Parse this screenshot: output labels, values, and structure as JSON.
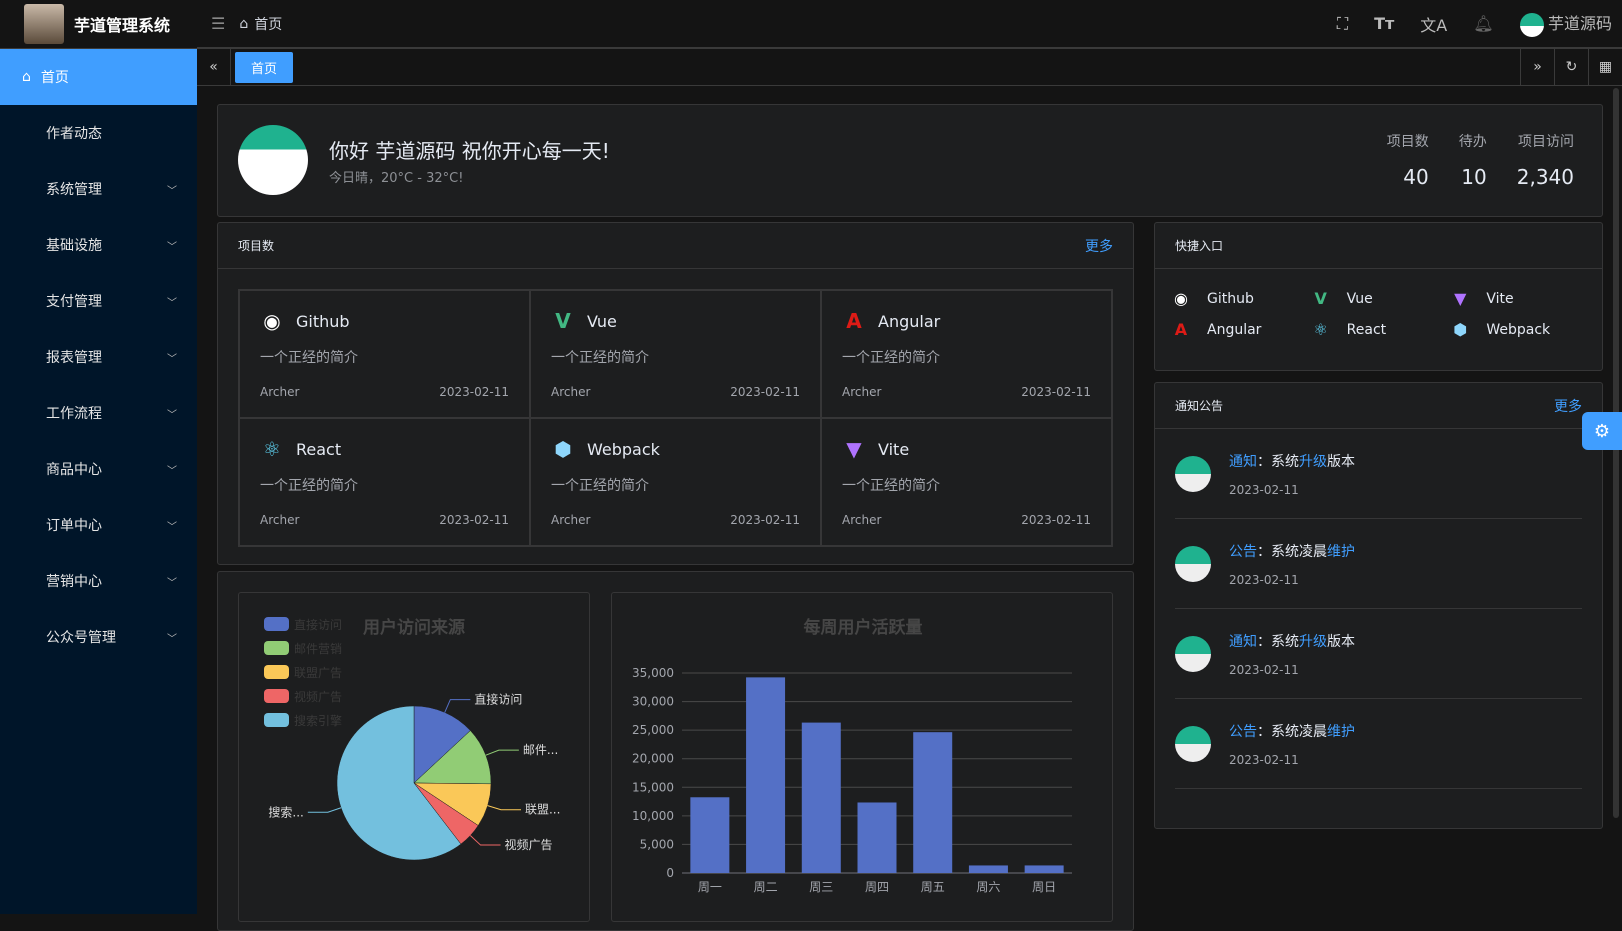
{
  "header": {
    "title": "芋道管理系统",
    "breadcrumb": "首页",
    "user": "芋道源码",
    "icons": [
      "fullscreen-icon",
      "font-size-icon",
      "translate-icon",
      "bell-icon"
    ]
  },
  "sidebar": {
    "items": [
      {
        "label": "首页",
        "active": true
      },
      {
        "label": "作者动态"
      },
      {
        "label": "系统管理",
        "sub": true
      },
      {
        "label": "基础设施",
        "sub": true
      },
      {
        "label": "支付管理",
        "sub": true
      },
      {
        "label": "报表管理",
        "sub": true
      },
      {
        "label": "工作流程",
        "sub": true
      },
      {
        "label": "商品中心",
        "sub": true
      },
      {
        "label": "订单中心",
        "sub": true
      },
      {
        "label": "营销中心",
        "sub": true
      },
      {
        "label": "公众号管理",
        "sub": true
      }
    ]
  },
  "tabs": [
    {
      "label": "首页"
    }
  ],
  "welcome": {
    "greeting": "你好 芋道源码 祝你开心每一天!",
    "weather": "今日晴，20°C - 32°C!",
    "stats": [
      {
        "label": "项目数",
        "value": "40"
      },
      {
        "label": "待办",
        "value": "10"
      },
      {
        "label": "项目访问",
        "value": "2,340"
      }
    ]
  },
  "projects": {
    "title": "项目数",
    "more": "更多",
    "items": [
      {
        "name": "Github",
        "icon": "github-icon",
        "color": "#ffffff",
        "desc": "一个正经的简介",
        "author": "Archer",
        "date": "2023-02-11"
      },
      {
        "name": "Vue",
        "icon": "vue-icon",
        "color": "#42b883",
        "desc": "一个正经的简介",
        "author": "Archer",
        "date": "2023-02-11"
      },
      {
        "name": "Angular",
        "icon": "angular-icon",
        "color": "#dd1b16",
        "desc": "一个正经的简介",
        "author": "Archer",
        "date": "2023-02-11"
      },
      {
        "name": "React",
        "icon": "react-icon",
        "color": "#61dafb",
        "desc": "一个正经的简介",
        "author": "Archer",
        "date": "2023-02-11"
      },
      {
        "name": "Webpack",
        "icon": "webpack-icon",
        "color": "#8ed6fb",
        "desc": "一个正经的简介",
        "author": "Archer",
        "date": "2023-02-11"
      },
      {
        "name": "Vite",
        "icon": "vite-icon",
        "color": "#b073ff",
        "desc": "一个正经的简介",
        "author": "Archer",
        "date": "2023-02-11"
      }
    ]
  },
  "shortcuts": {
    "title": "快捷入口",
    "items": [
      {
        "name": "Github",
        "icon": "github-icon",
        "color": "#ffffff"
      },
      {
        "name": "Vue",
        "icon": "vue-icon",
        "color": "#42b883"
      },
      {
        "name": "Vite",
        "icon": "vite-icon",
        "color": "#b073ff"
      },
      {
        "name": "Angular",
        "icon": "angular-icon",
        "color": "#dd1b16"
      },
      {
        "name": "React",
        "icon": "react-icon",
        "color": "#61dafb"
      },
      {
        "name": "Webpack",
        "icon": "webpack-icon",
        "color": "#8ed6fb"
      }
    ]
  },
  "notices": {
    "title": "通知公告",
    "more": "更多",
    "items": [
      {
        "type": "通知",
        "pre": "：系统",
        "hl": "升级",
        "post": "版本",
        "date": "2023-02-11"
      },
      {
        "type": "公告",
        "pre": "：系统凌晨",
        "hl": "维护",
        "post": "",
        "date": "2023-02-11"
      },
      {
        "type": "通知",
        "pre": "：系统",
        "hl": "升级",
        "post": "版本",
        "date": "2023-02-11"
      },
      {
        "type": "公告",
        "pre": "：系统凌晨",
        "hl": "维护",
        "post": "",
        "date": "2023-02-11"
      }
    ]
  },
  "chart_data": [
    {
      "type": "pie",
      "title": "用户访问来源",
      "legend": "top-left",
      "categories": [
        "直接访问",
        "邮件营销",
        "联盟广告",
        "视频广告",
        "搜索引擎"
      ],
      "values": [
        335,
        310,
        234,
        135,
        1548
      ],
      "labels": [
        "直接访问",
        "邮件...",
        "联盟...",
        "视频广告",
        "搜索..."
      ],
      "colors": [
        "#5470c6",
        "#91cc75",
        "#fac858",
        "#ee6666",
        "#73c0de"
      ]
    },
    {
      "type": "bar",
      "title": "每周用户活跃量",
      "categories": [
        "周一",
        "周二",
        "周三",
        "周四",
        "周五",
        "周六",
        "周日"
      ],
      "values": [
        13253,
        34235,
        26321,
        12340,
        24643,
        1322,
        1324
      ],
      "ylim": [
        0,
        35000
      ],
      "yticks": [
        "0",
        "5,000",
        "10,000",
        "15,000",
        "20,000",
        "25,000",
        "30,000",
        "35,000"
      ],
      "color": "#5470c6",
      "grid": true
    }
  ]
}
